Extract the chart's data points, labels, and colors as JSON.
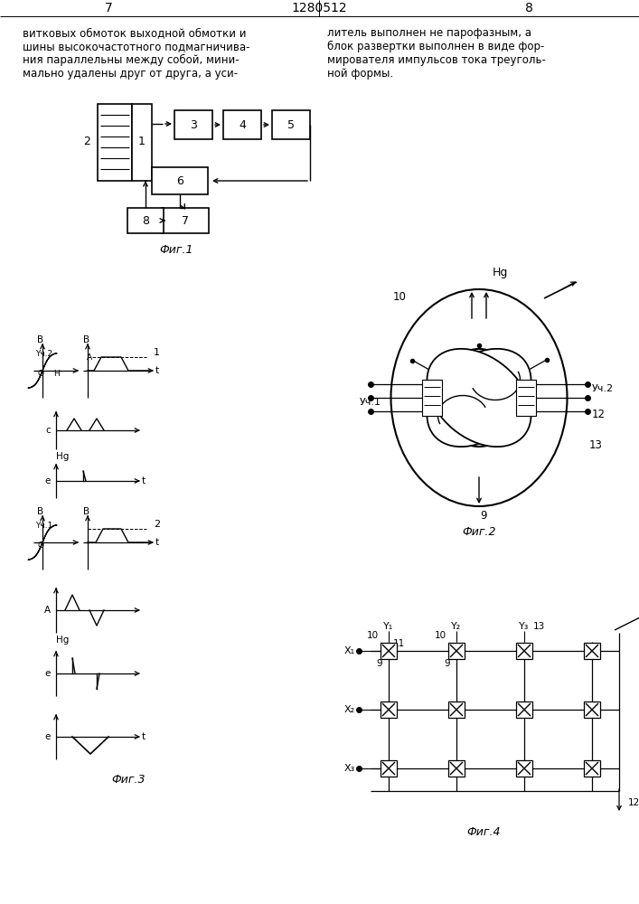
{
  "title": "1280512",
  "page_left": "7",
  "page_right": "8",
  "text_left": "витковых обмоток выходной обмотки и\nшины высокочастотного подмагничива-\nния параллельны между собой, мини-\nмально удалены друг от друга, а уси-",
  "text_right": "литель выполнен не парофазным, а\nблок развертки выполнен в виде фор-\nмирователя импульсов тока треуголь-\nной формы.",
  "fig1_caption": "Фиг.1",
  "fig2_caption": "Фиг.2",
  "fig3_caption": "Фиг.3",
  "fig4_caption": "Фиг.4",
  "bg_color": "#ffffff",
  "line_color": "#000000"
}
